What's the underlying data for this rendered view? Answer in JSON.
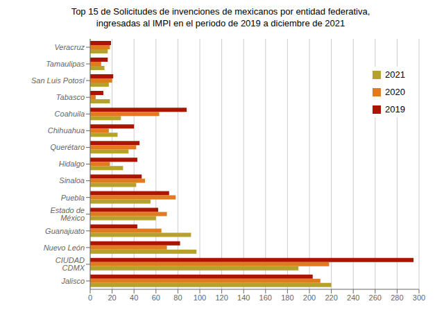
{
  "chart_data": {
    "type": "bar",
    "orientation": "horizontal",
    "title": "Top 15 de Solicitudes de invenciones de mexicanos por entidad federativa,\ningresadas al IMPI en el periodo de 2019 a diciembre de 2021",
    "categories": [
      "Veracruz",
      "Tamaulipas",
      "San Luis Potosí",
      "Tabasco",
      "Coahuila",
      "Chihuahua",
      "Querétaro",
      "Hidalgo",
      "Sinaloa",
      "Puebla",
      "Estado de México",
      "Guanajuato",
      "Nuevo León",
      "CIUDAD CDMX",
      "Jalisco"
    ],
    "series": [
      {
        "name": "2021",
        "color": "#b5a030",
        "values": [
          16,
          13,
          17,
          18,
          28,
          25,
          35,
          30,
          42,
          55,
          60,
          92,
          97,
          190,
          220
        ]
      },
      {
        "name": "2020",
        "color": "#e07b20",
        "values": [
          18,
          10,
          20,
          5,
          63,
          17,
          42,
          18,
          50,
          78,
          70,
          65,
          70,
          218,
          210
        ]
      },
      {
        "name": "2019",
        "color": "#aa1500",
        "values": [
          19,
          16,
          21,
          12,
          88,
          40,
          45,
          43,
          47,
          72,
          62,
          43,
          82,
          295,
          203
        ]
      }
    ],
    "xlim": [
      0,
      300
    ],
    "xticks": [
      0,
      20,
      40,
      60,
      80,
      100,
      120,
      140,
      160,
      180,
      200,
      220,
      240,
      260,
      280,
      300
    ],
    "grid": true,
    "legend": "upper right"
  }
}
